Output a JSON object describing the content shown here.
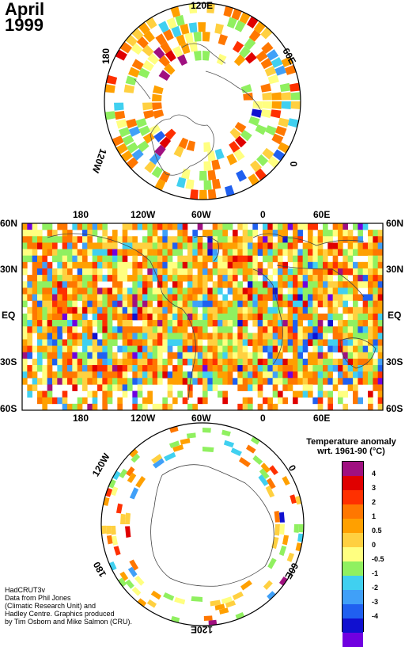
{
  "title": {
    "month": "April",
    "year": "1999"
  },
  "polar_north": {
    "labels": {
      "top": "120E",
      "left": "180",
      "right": "60E",
      "bottom_left": "120W",
      "bottom_right": "0"
    }
  },
  "world_map": {
    "lat_labels": [
      "60N",
      "30N",
      "EQ",
      "30S",
      "60S"
    ],
    "lon_labels": [
      "180",
      "120W",
      "60W",
      "0",
      "60E"
    ]
  },
  "polar_south": {
    "labels": {
      "top_left": "120W",
      "top_right": "0",
      "left": "180",
      "right": "60E",
      "bottom": "120E"
    }
  },
  "legend": {
    "title_line1": "Temperature anomaly",
    "title_line2": "wrt. 1961-90  (°C)",
    "ticks": [
      "4",
      "3",
      "2",
      "1",
      "0.5",
      "0",
      "-0.5",
      "-1",
      "-2",
      "-3",
      "-4"
    ],
    "colors": [
      "#a01080",
      "#e00000",
      "#ff3000",
      "#ff7700",
      "#ffa000",
      "#ffd040",
      "#ffff80",
      "#90f060",
      "#40d0f0",
      "#40a0f8",
      "#2060f0",
      "#1010d0",
      "#7000e0"
    ]
  },
  "credits": {
    "line1": "HadCRUT3v",
    "line2": "Data from Phil Jones",
    "line3": "(Climatic Research Unit) and",
    "line4": "Hadley Centre.  Graphics produced",
    "line5": "by Tim Osborn and Mike Salmon (CRU)."
  }
}
